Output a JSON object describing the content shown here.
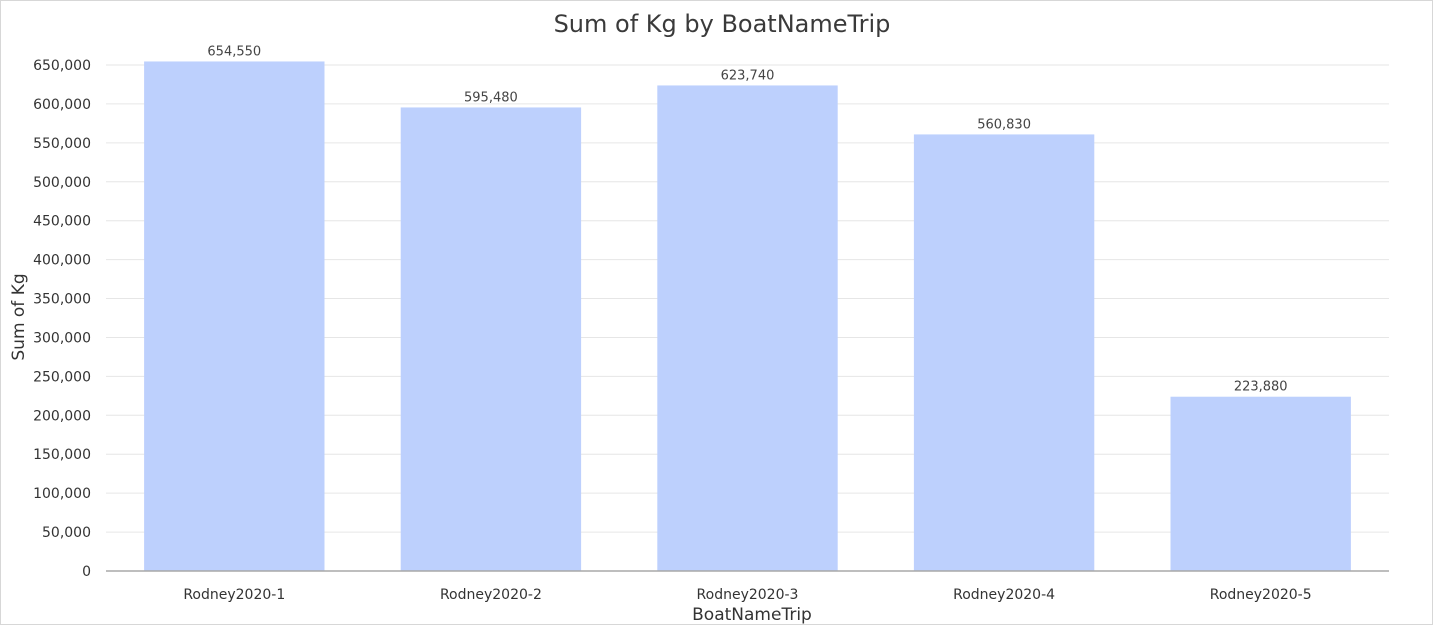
{
  "chart_data": {
    "type": "bar",
    "title": "Sum of Kg by BoatNameTrip",
    "xlabel": "BoatNameTrip",
    "ylabel": "Sum of Kg",
    "categories": [
      "Rodney2020-1",
      "Rodney2020-2",
      "Rodney2020-3",
      "Rodney2020-4",
      "Rodney2020-5"
    ],
    "values": [
      654550,
      595480,
      623740,
      560830,
      223880
    ],
    "data_labels": [
      "654,550",
      "595,480",
      "623,740",
      "560,830",
      "223,880"
    ],
    "ylim": [
      0,
      650000
    ],
    "yticks": [
      "0",
      "50,000",
      "100,000",
      "150,000",
      "200,000",
      "250,000",
      "300,000",
      "350,000",
      "400,000",
      "450,000",
      "500,000",
      "550,000",
      "600,000",
      "650,000"
    ],
    "grid": true,
    "legend": "none",
    "bar_color": "#bdd0fd"
  }
}
